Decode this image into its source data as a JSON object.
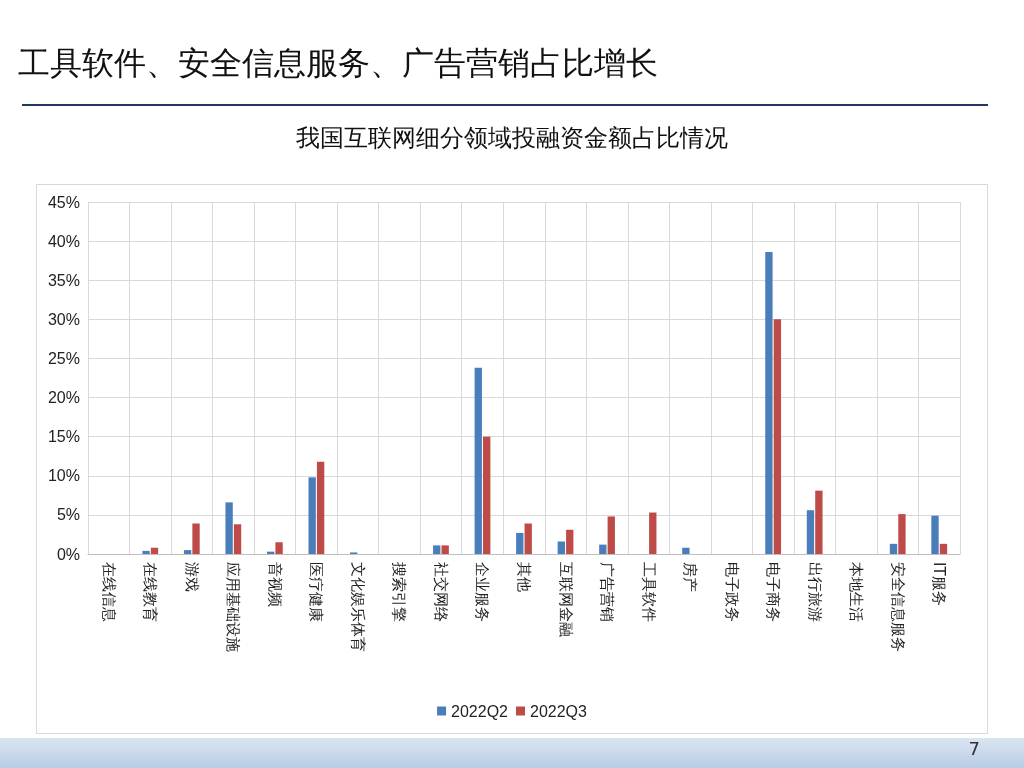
{
  "chart_data": {
    "type": "bar",
    "title": "工具软件、安全信息服务、广告营销占比增长",
    "subtitle": "我国互联网细分领域投融资金额占比情况",
    "categories": [
      "在线信息",
      "在线教育",
      "游戏",
      "应用基础设施",
      "音视频",
      "医疗健康",
      "文化娱乐体育",
      "搜索引擎",
      "社交网络",
      "企业服务",
      "其他",
      "互联网金融",
      "广告营销",
      "工具软件",
      "房产",
      "电子政务",
      "电子商务",
      "出行旅游",
      "本地生活",
      "安全信息服务",
      "IT服务"
    ],
    "series": [
      {
        "name": "2022Q2",
        "color": "#4a7ebb",
        "values": [
          0,
          0.4,
          0.5,
          6.6,
          0.3,
          9.8,
          0.2,
          0,
          1.1,
          23.8,
          2.7,
          1.6,
          1.2,
          0,
          0.8,
          0,
          38.6,
          5.6,
          0,
          1.3,
          4.9
        ]
      },
      {
        "name": "2022Q3",
        "color": "#be4b48",
        "values": [
          0,
          0.8,
          3.9,
          3.8,
          1.5,
          11.8,
          0,
          0,
          1.1,
          15.0,
          3.9,
          3.1,
          4.8,
          5.3,
          0,
          0,
          30.0,
          8.1,
          0,
          5.1,
          1.3
        ]
      }
    ],
    "ylim": [
      0,
      45
    ],
    "yticks": [
      {
        "value": 0,
        "label": "0%"
      },
      {
        "value": 5,
        "label": "5%"
      },
      {
        "value": 10,
        "label": "10%"
      },
      {
        "value": 15,
        "label": "15%"
      },
      {
        "value": 20,
        "label": "20%"
      },
      {
        "value": 25,
        "label": "25%"
      },
      {
        "value": 30,
        "label": "30%"
      },
      {
        "value": 35,
        "label": "35%"
      },
      {
        "value": 40,
        "label": "40%"
      },
      {
        "value": 45,
        "label": "45%"
      }
    ],
    "grid": true,
    "legend": "bottom",
    "annotations": [
      "7"
    ]
  }
}
